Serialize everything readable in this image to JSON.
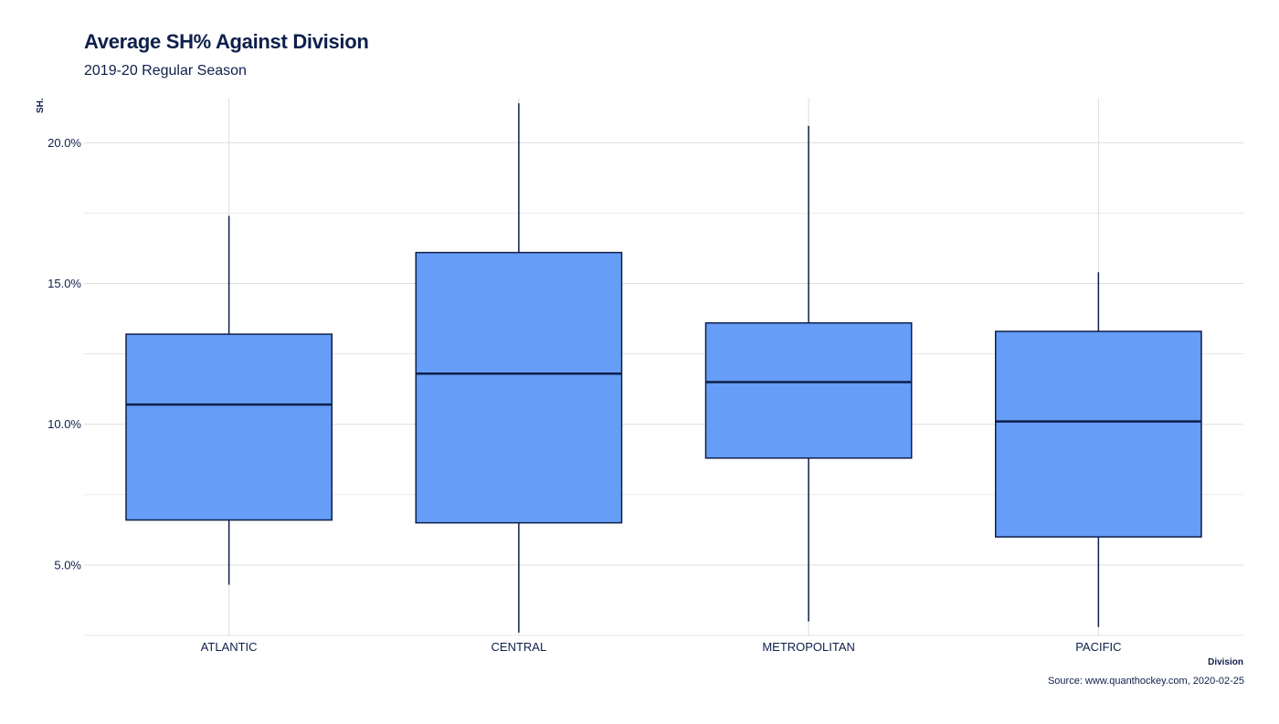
{
  "chart_data": {
    "type": "boxplot",
    "title": "Average SH% Against Division",
    "subtitle": "2019-20 Regular Season",
    "xlabel": "Division",
    "ylabel": "SH.",
    "caption": "Source: www.quanthockey.com, 2020-02-25",
    "ylim": [
      2.5,
      21.6
    ],
    "y_ticks": [
      5,
      10,
      15,
      20
    ],
    "y_tick_labels": [
      "5.0%",
      "10.0%",
      "15.0%",
      "20.0%"
    ],
    "grid": true,
    "categories": [
      "ATLANTIC",
      "CENTRAL",
      "METROPOLITAN",
      "PACIFIC"
    ],
    "boxes": [
      {
        "category": "ATLANTIC",
        "min": 4.3,
        "q1": 6.6,
        "median": 10.7,
        "q3": 13.2,
        "max": 17.4
      },
      {
        "category": "CENTRAL",
        "min": 2.6,
        "q1": 6.5,
        "median": 11.8,
        "q3": 16.1,
        "max": 21.4
      },
      {
        "category": "METROPOLITAN",
        "min": 3.0,
        "q1": 8.8,
        "median": 11.5,
        "q3": 13.6,
        "max": 20.6
      },
      {
        "category": "PACIFIC",
        "min": 2.8,
        "q1": 6.0,
        "median": 10.1,
        "q3": 13.3,
        "max": 15.4
      }
    ],
    "colors": {
      "box_fill": "#669df6",
      "box_stroke": "#0d1f4a",
      "grid": "#dedede",
      "text": "#0d1f4a"
    }
  }
}
